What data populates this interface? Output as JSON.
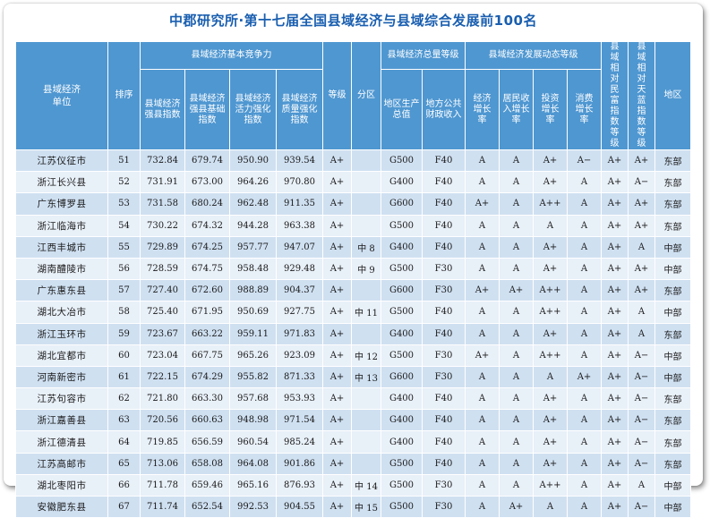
{
  "title": "中郡研究所·第十七届全国县域经济与县域综合发展前100名",
  "header": {
    "unit": "县域经济单位",
    "rank": "排序",
    "group_basic": "县域经济基本竞争力",
    "group_total": "县域经济总量等级",
    "group_dynamic": "县域经济发展动态等级",
    "strong_index": "县域经济强县指数",
    "foundation_index": "县域经济强县基础指数",
    "vitality_index": "县域经济活力强化指数",
    "quality_index": "县域经济质量强化指数",
    "grade": "等级",
    "division": "分区",
    "gdp": "地区生产总值",
    "revenue": "地方公共财政收入",
    "econ_growth": "经济增长率",
    "income_growth": "居民收入增长率",
    "invest_growth": "投资增长率",
    "consume_growth": "消费增长率",
    "wealth_index": "县域相对民富指数等级",
    "blue_sky_index": "县域相对天蓝指数等级",
    "region": "地区"
  },
  "rows": [
    {
      "unit": "江苏仪征市",
      "rank": "51",
      "strong": "732.84",
      "foundation": "679.74",
      "vitality": "950.90",
      "quality": "939.54",
      "grade": "A+",
      "division": "",
      "gdp": "G500",
      "revenue": "F40",
      "econ": "A",
      "income": "A",
      "invest": "A+",
      "consume": "A−",
      "wealth": "A+",
      "sky": "A+",
      "region": "东部"
    },
    {
      "unit": "浙江长兴县",
      "rank": "52",
      "strong": "731.91",
      "foundation": "673.00",
      "vitality": "964.26",
      "quality": "970.80",
      "grade": "A+",
      "division": "",
      "gdp": "G400",
      "revenue": "F40",
      "econ": "A",
      "income": "A",
      "invest": "A+",
      "consume": "A",
      "wealth": "A+",
      "sky": "A−",
      "region": "东部"
    },
    {
      "unit": "广东博罗县",
      "rank": "53",
      "strong": "731.58",
      "foundation": "680.24",
      "vitality": "962.48",
      "quality": "911.35",
      "grade": "A+",
      "division": "",
      "gdp": "G600",
      "revenue": "F40",
      "econ": "A+",
      "income": "A",
      "invest": "A++",
      "consume": "A",
      "wealth": "A+",
      "sky": "A+",
      "region": "东部"
    },
    {
      "unit": "浙江临海市",
      "rank": "54",
      "strong": "730.22",
      "foundation": "674.32",
      "vitality": "944.28",
      "quality": "963.38",
      "grade": "A+",
      "division": "",
      "gdp": "G500",
      "revenue": "F40",
      "econ": "A",
      "income": "A",
      "invest": "A",
      "consume": "A",
      "wealth": "A+",
      "sky": "A+",
      "region": "东部"
    },
    {
      "unit": "江西丰城市",
      "rank": "55",
      "strong": "729.89",
      "foundation": "674.25",
      "vitality": "957.77",
      "quality": "947.07",
      "grade": "A+",
      "division": "中 8",
      "gdp": "G400",
      "revenue": "F40",
      "econ": "A",
      "income": "A",
      "invest": "A+",
      "consume": "A",
      "wealth": "A+",
      "sky": "A",
      "region": "中部"
    },
    {
      "unit": "湖南醴陵市",
      "rank": "56",
      "strong": "728.59",
      "foundation": "674.75",
      "vitality": "958.48",
      "quality": "929.48",
      "grade": "A+",
      "division": "中 9",
      "gdp": "G500",
      "revenue": "F30",
      "econ": "A",
      "income": "A",
      "invest": "A+",
      "consume": "A",
      "wealth": "A+",
      "sky": "A+",
      "region": "中部"
    },
    {
      "unit": "广东惠东县",
      "rank": "57",
      "strong": "727.40",
      "foundation": "672.60",
      "vitality": "988.89",
      "quality": "904.37",
      "grade": "A+",
      "division": "",
      "gdp": "G600",
      "revenue": "F30",
      "econ": "A+",
      "income": "A+",
      "invest": "A++",
      "consume": "A",
      "wealth": "A+",
      "sky": "A+",
      "region": "东部"
    },
    {
      "unit": "湖北大冶市",
      "rank": "58",
      "strong": "725.40",
      "foundation": "671.95",
      "vitality": "950.69",
      "quality": "927.75",
      "grade": "A+",
      "division": "中 11",
      "gdp": "G500",
      "revenue": "F40",
      "econ": "A",
      "income": "A",
      "invest": "A++",
      "consume": "A",
      "wealth": "A+",
      "sky": "A",
      "region": "中部"
    },
    {
      "unit": "浙江玉环市",
      "rank": "59",
      "strong": "723.67",
      "foundation": "663.22",
      "vitality": "959.11",
      "quality": "971.83",
      "grade": "A+",
      "division": "",
      "gdp": "G400",
      "revenue": "F40",
      "econ": "A",
      "income": "A",
      "invest": "A+",
      "consume": "A",
      "wealth": "A+",
      "sky": "A",
      "region": "东部"
    },
    {
      "unit": "湖北宜都市",
      "rank": "60",
      "strong": "723.04",
      "foundation": "667.75",
      "vitality": "965.26",
      "quality": "923.09",
      "grade": "A+",
      "division": "中 12",
      "gdp": "G500",
      "revenue": "F30",
      "econ": "A+",
      "income": "A",
      "invest": "A++",
      "consume": "A",
      "wealth": "A+",
      "sky": "A−",
      "region": "中部"
    },
    {
      "unit": "河南新密市",
      "rank": "61",
      "strong": "722.15",
      "foundation": "674.29",
      "vitality": "955.82",
      "quality": "871.33",
      "grade": "A+",
      "division": "中 13",
      "gdp": "G600",
      "revenue": "F30",
      "econ": "A",
      "income": "A",
      "invest": "A",
      "consume": "A+",
      "wealth": "A+",
      "sky": "A−",
      "region": "中部"
    },
    {
      "unit": "江苏句容市",
      "rank": "62",
      "strong": "721.80",
      "foundation": "663.30",
      "vitality": "957.68",
      "quality": "953.93",
      "grade": "A+",
      "division": "",
      "gdp": "G400",
      "revenue": "F40",
      "econ": "A",
      "income": "A",
      "invest": "A+",
      "consume": "A",
      "wealth": "A+",
      "sky": "A−",
      "region": "东部"
    },
    {
      "unit": "浙江嘉善县",
      "rank": "63",
      "strong": "720.56",
      "foundation": "660.63",
      "vitality": "948.98",
      "quality": "971.54",
      "grade": "A+",
      "division": "",
      "gdp": "G400",
      "revenue": "F40",
      "econ": "A",
      "income": "A",
      "invest": "A+",
      "consume": "A",
      "wealth": "A+",
      "sky": "A−",
      "region": "东部"
    },
    {
      "unit": "浙江德清县",
      "rank": "64",
      "strong": "719.85",
      "foundation": "656.59",
      "vitality": "960.54",
      "quality": "985.24",
      "grade": "A+",
      "division": "",
      "gdp": "G400",
      "revenue": "F40",
      "econ": "A",
      "income": "A",
      "invest": "A+",
      "consume": "A",
      "wealth": "A+",
      "sky": "A−",
      "region": "东部"
    },
    {
      "unit": "江苏高邮市",
      "rank": "65",
      "strong": "713.06",
      "foundation": "658.08",
      "vitality": "964.08",
      "quality": "901.86",
      "grade": "A+",
      "division": "",
      "gdp": "G500",
      "revenue": "F40",
      "econ": "A",
      "income": "A",
      "invest": "A+",
      "consume": "A",
      "wealth": "A+",
      "sky": "A−",
      "region": "东部"
    },
    {
      "unit": "湖北枣阳市",
      "rank": "66",
      "strong": "711.78",
      "foundation": "659.46",
      "vitality": "965.16",
      "quality": "876.93",
      "grade": "A+",
      "division": "中 14",
      "gdp": "G500",
      "revenue": "F30",
      "econ": "A",
      "income": "A",
      "invest": "A++",
      "consume": "A",
      "wealth": "A+",
      "sky": "A",
      "region": "中部"
    },
    {
      "unit": "安徽肥东县",
      "rank": "67",
      "strong": "711.74",
      "foundation": "652.54",
      "vitality": "992.53",
      "quality": "904.55",
      "grade": "A+",
      "division": "中 15",
      "gdp": "G500",
      "revenue": "F30",
      "econ": "A",
      "income": "A+",
      "invest": "A",
      "consume": "A",
      "wealth": "A+",
      "sky": "A−",
      "region": "中部"
    }
  ]
}
